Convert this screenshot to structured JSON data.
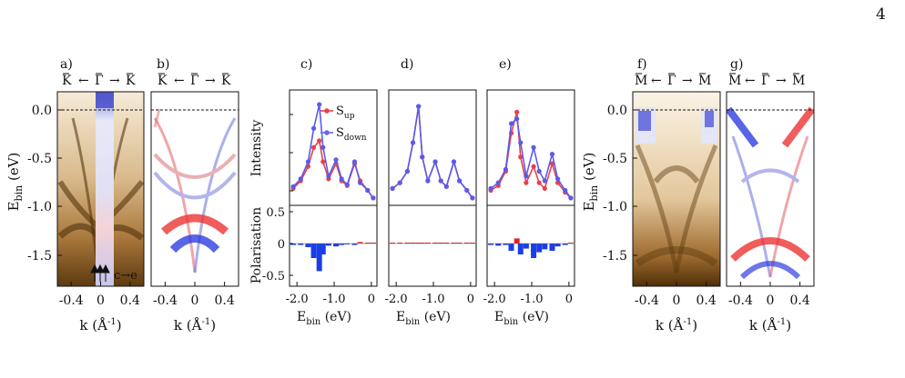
{
  "page_number": "4",
  "figure": {
    "panel_labels": [
      "a)",
      "b)",
      "c)",
      "d)",
      "e)",
      "f)",
      "g)"
    ],
    "arpes_panels": {
      "k_labels": [
        "K",
        "←",
        "Γ",
        "→",
        "K"
      ],
      "m_labels": [
        "M",
        "←",
        "Γ",
        "→",
        "M"
      ],
      "y_axis_label": "E",
      "y_axis_sub": "bin",
      "y_axis_unit": "(eV)",
      "y_ticks": [
        "0.0",
        "-0.5",
        "-1.0",
        "-1.5"
      ],
      "x_axis_label": "k (Å",
      "x_axis_sup": "-1",
      "x_axis_close": ")",
      "x_ticks": [
        "-0.4",
        "0",
        "0.4"
      ],
      "annotation_ce": "c→e"
    },
    "spectra_panels": {
      "intensity_label": "Intensity",
      "polarisation_label": "Polarisation",
      "pol_ticks": [
        "0.5",
        "0",
        "-0.5"
      ],
      "x_axis_label": "E",
      "x_axis_sub": "bin",
      "x_axis_unit": "(eV)",
      "x_ticks": [
        "-2.0",
        "-1.0",
        "0"
      ],
      "legend": [
        {
          "label": "S",
          "sub": "up",
          "color": "#e8414b"
        },
        {
          "label": "S",
          "sub": "down",
          "color": "#6a68e6"
        }
      ]
    },
    "colors": {
      "copper": "#8a5a1c",
      "red": "#e8414b",
      "blue": "#5b5bea",
      "pol_red": "#e61e1e",
      "pol_blue": "#1a3ee6"
    }
  },
  "chart_data": [
    {
      "type": "line",
      "panel": "c)",
      "x": [
        -2.1,
        -1.9,
        -1.7,
        -1.55,
        -1.4,
        -1.3,
        -1.15,
        -0.95,
        -0.8,
        -0.65,
        -0.45,
        -0.3,
        -0.1,
        0.05
      ],
      "series": [
        {
          "name": "S_up",
          "values": [
            0.12,
            0.2,
            0.35,
            0.55,
            0.62,
            0.4,
            0.22,
            0.38,
            0.2,
            0.15,
            0.38,
            0.2,
            0.1,
            0.02
          ]
        },
        {
          "name": "S_down",
          "values": [
            0.14,
            0.22,
            0.4,
            0.75,
            1.0,
            0.55,
            0.25,
            0.42,
            0.22,
            0.16,
            0.4,
            0.18,
            0.1,
            0.02
          ]
        }
      ]
    },
    {
      "type": "line",
      "panel": "d)",
      "x": [
        -2.1,
        -1.9,
        -1.7,
        -1.55,
        -1.4,
        -1.3,
        -1.15,
        -0.95,
        -0.8,
        -0.65,
        -0.45,
        -0.3,
        -0.1,
        0.05
      ],
      "series": [
        {
          "name": "S_up",
          "values": [
            0.12,
            0.18,
            0.3,
            0.6,
            0.98,
            0.45,
            0.2,
            0.4,
            0.2,
            0.14,
            0.4,
            0.2,
            0.1,
            0.02
          ]
        },
        {
          "name": "S_down",
          "values": [
            0.12,
            0.18,
            0.3,
            0.6,
            0.98,
            0.45,
            0.2,
            0.4,
            0.2,
            0.14,
            0.4,
            0.2,
            0.1,
            0.02
          ]
        }
      ]
    },
    {
      "type": "line",
      "panel": "e)",
      "x": [
        -2.1,
        -1.9,
        -1.7,
        -1.55,
        -1.4,
        -1.3,
        -1.15,
        -0.95,
        -0.8,
        -0.65,
        -0.45,
        -0.3,
        -0.1,
        0.05
      ],
      "series": [
        {
          "name": "S_up",
          "values": [
            0.1,
            0.15,
            0.3,
            0.7,
            0.92,
            0.45,
            0.18,
            0.35,
            0.18,
            0.12,
            0.38,
            0.18,
            0.08,
            0.02
          ]
        },
        {
          "name": "S_down",
          "values": [
            0.12,
            0.18,
            0.32,
            0.8,
            0.85,
            0.6,
            0.25,
            0.55,
            0.3,
            0.2,
            0.48,
            0.22,
            0.1,
            0.02
          ]
        }
      ]
    }
  ]
}
